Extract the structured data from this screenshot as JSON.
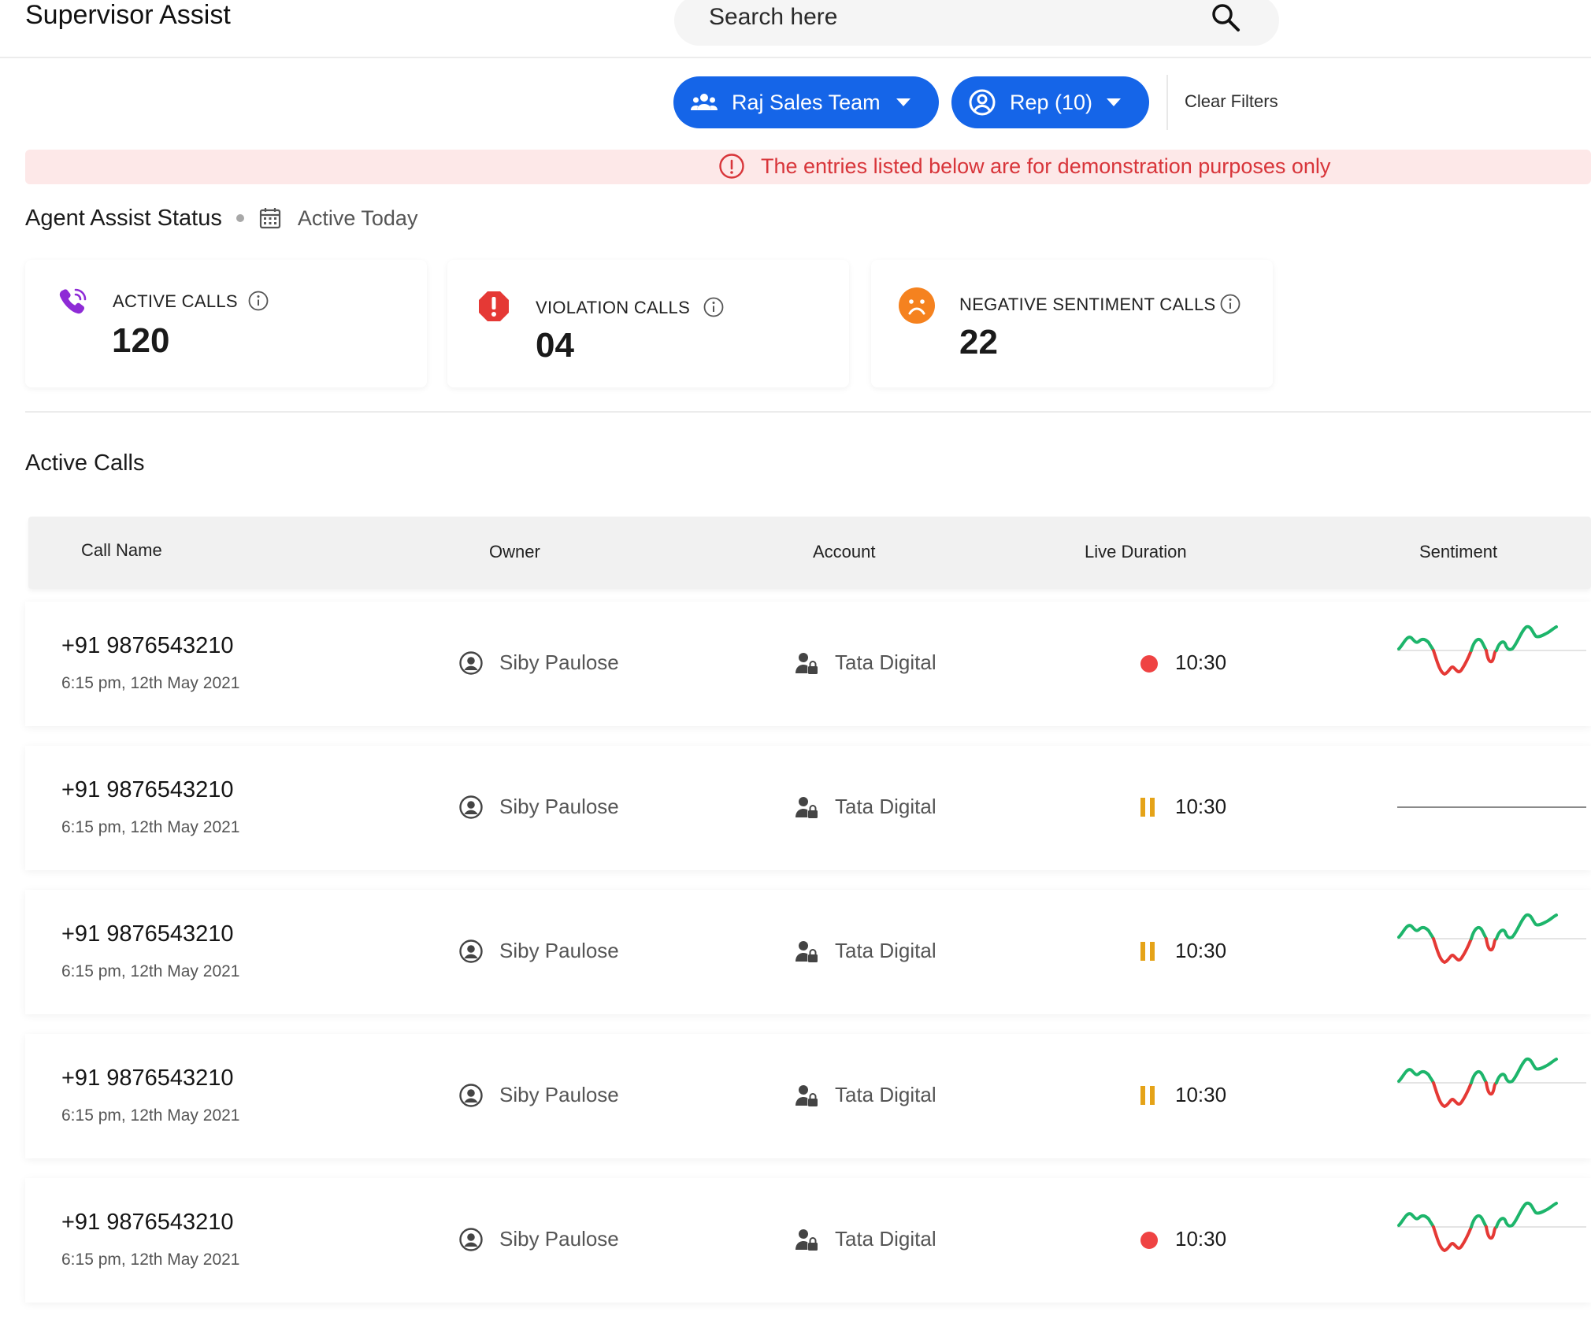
{
  "app": {
    "title": "Supervisor Assist"
  },
  "search": {
    "placeholder": "Search here"
  },
  "filters": {
    "team_label": "Raj Sales Team",
    "rep_label": "Rep (10)",
    "clear_label": "Clear Filters"
  },
  "notice": {
    "text": "The entries listed below are for demonstration purposes only"
  },
  "status": {
    "title": "Agent Assist Status",
    "range": "Active Today"
  },
  "stats": [
    {
      "label": "ACTIVE CALLS",
      "value": "120",
      "icon": "phone-ringing-icon"
    },
    {
      "label": "VIOLATION CALLS",
      "value": "04",
      "icon": "violation-alert-icon"
    },
    {
      "label": "NEGATIVE SENTIMENT CALLS",
      "value": "22",
      "icon": "sad-face-icon"
    }
  ],
  "active_calls": {
    "title": "Active Calls",
    "columns": [
      "Call Name",
      "Owner",
      "Account",
      "Live Duration",
      "Sentiment"
    ],
    "rows": [
      {
        "number": "+91 9876543210",
        "time": "6:15 pm, 12th May 2021",
        "owner": "Siby Paulose",
        "account": "Tata Digital",
        "status": "live",
        "duration": "10:30",
        "sentiment": "wave"
      },
      {
        "number": "+91 9876543210",
        "time": "6:15 pm, 12th May 2021",
        "owner": "Siby Paulose",
        "account": "Tata Digital",
        "status": "paused",
        "duration": "10:30",
        "sentiment": "flat"
      },
      {
        "number": "+91 9876543210",
        "time": "6:15 pm, 12th May 2021",
        "owner": "Siby Paulose",
        "account": "Tata Digital",
        "status": "paused",
        "duration": "10:30",
        "sentiment": "wave"
      },
      {
        "number": "+91 9876543210",
        "time": "6:15 pm, 12th May 2021",
        "owner": "Siby Paulose",
        "account": "Tata Digital",
        "status": "paused",
        "duration": "10:30",
        "sentiment": "wave"
      },
      {
        "number": "+91 9876543210",
        "time": "6:15 pm, 12th May 2021",
        "owner": "Siby Paulose",
        "account": "Tata Digital",
        "status": "live",
        "duration": "10:30",
        "sentiment": "wave"
      }
    ]
  },
  "colors": {
    "primary": "#1565e8",
    "notice_bg": "#fde8e8",
    "notice_text": "#d8353a",
    "live": "#ef4343",
    "paused": "#e5a318",
    "positive": "#1db56b",
    "negative": "#e53935",
    "phone": "#8e2bd6",
    "violation": "#e53935",
    "sad": "#f5821f"
  }
}
